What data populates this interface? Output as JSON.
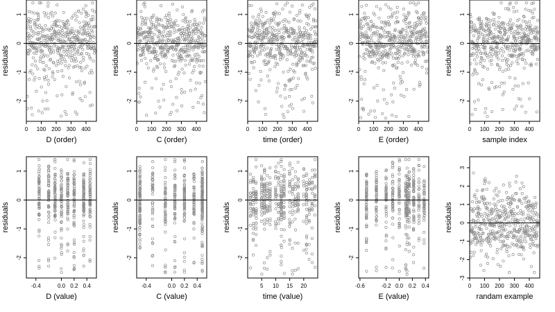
{
  "chart_data": [
    {
      "type": "scatter",
      "xlabel": "D (order)",
      "ylabel": "residuals",
      "xlim": [
        0,
        470
      ],
      "ylim": [
        -2.7,
        1.5
      ],
      "xticks": [
        0,
        100,
        200,
        300,
        400
      ],
      "yticks": [
        -2,
        -1,
        0,
        1
      ],
      "reference_line": 0,
      "n": 470,
      "distribution": "index",
      "seed": 11
    },
    {
      "type": "scatter",
      "xlabel": "C (order)",
      "ylabel": "residuals",
      "xlim": [
        0,
        470
      ],
      "ylim": [
        -2.7,
        1.5
      ],
      "xticks": [
        0,
        100,
        200,
        300,
        400
      ],
      "yticks": [
        -2,
        -1,
        0,
        1
      ],
      "reference_line": 0,
      "n": 470,
      "distribution": "index",
      "seed": 12
    },
    {
      "type": "scatter",
      "xlabel": "time (order)",
      "ylabel": "residuals",
      "xlim": [
        0,
        470
      ],
      "ylim": [
        -2.7,
        1.5
      ],
      "xticks": [
        0,
        100,
        200,
        300,
        400
      ],
      "yticks": [
        -2,
        -1,
        0,
        1
      ],
      "reference_line": 0,
      "n": 470,
      "distribution": "index",
      "seed": 13
    },
    {
      "type": "scatter",
      "xlabel": "E (order)",
      "ylabel": "residuals",
      "xlim": [
        0,
        470
      ],
      "ylim": [
        -2.7,
        1.5
      ],
      "xticks": [
        0,
        100,
        200,
        300,
        400
      ],
      "yticks": [
        -2,
        -1,
        0,
        1
      ],
      "reference_line": 0,
      "n": 470,
      "distribution": "index",
      "seed": 14
    },
    {
      "type": "scatter",
      "xlabel": "sample index",
      "ylabel": "residuals",
      "xlim": [
        0,
        470
      ],
      "ylim": [
        -2.7,
        1.5
      ],
      "xticks": [
        0,
        100,
        200,
        300,
        400
      ],
      "yticks": [
        -2,
        -1,
        0,
        1
      ],
      "reference_line": 0,
      "n": 470,
      "distribution": "index",
      "seed": 15
    },
    {
      "type": "scatter",
      "xlabel": "D (value)",
      "ylabel": "residuals",
      "xlim": [
        -0.55,
        0.55
      ],
      "ylim": [
        -2.7,
        1.5
      ],
      "xticks": [
        -0.4,
        0.0,
        0.2,
        0.4
      ],
      "xtick_labels": [
        "-0.4",
        "0.0",
        "0.2",
        "0.4"
      ],
      "yticks": [
        -2,
        -1,
        0,
        1
      ],
      "reference_line": 0,
      "n": 470,
      "distribution": "levels",
      "levels": [
        -0.35,
        -0.2,
        -0.1,
        0.0,
        0.1,
        0.2,
        0.35,
        0.45
      ],
      "seed": 21
    },
    {
      "type": "scatter",
      "xlabel": "C (value)",
      "ylabel": "residuals",
      "xlim": [
        -0.55,
        0.55
      ],
      "ylim": [
        -2.7,
        1.5
      ],
      "xticks": [
        -0.4,
        0.0,
        0.2,
        0.4
      ],
      "xtick_labels": [
        "-0.4",
        "0.0",
        "0.2",
        "0.4"
      ],
      "yticks": [
        -2,
        -1,
        0,
        1
      ],
      "reference_line": 0,
      "n": 470,
      "distribution": "levels",
      "levels": [
        -0.5,
        -0.5,
        -0.3,
        -0.1,
        0.05,
        0.2,
        0.35,
        0.48,
        0.48,
        0.48
      ],
      "seed": 22
    },
    {
      "type": "scatter",
      "xlabel": "time (value)",
      "ylabel": "residuals",
      "xlim": [
        0,
        25
      ],
      "ylim": [
        -2.7,
        1.5
      ],
      "xticks": [
        5,
        10,
        15,
        20
      ],
      "yticks": [
        -2,
        -1,
        0,
        1
      ],
      "reference_line": 0,
      "n": 470,
      "distribution": "levels",
      "levels": [
        1,
        2,
        3,
        5,
        6,
        7,
        8,
        10,
        11,
        12,
        12,
        13,
        15,
        16,
        17,
        18,
        20,
        21,
        22,
        23,
        24
      ],
      "seed": 23
    },
    {
      "type": "scatter",
      "xlabel": "E (value)",
      "ylabel": "residuals",
      "xlim": [
        -0.62,
        0.45
      ],
      "ylim": [
        -2.7,
        1.5
      ],
      "xticks": [
        -0.6,
        -0.2,
        0.0,
        0.2,
        0.4
      ],
      "xtick_labels": [
        "-0.6",
        "-0.2",
        "0.0",
        "0.2",
        "0.4"
      ],
      "yticks": [
        -2,
        -1,
        0,
        1
      ],
      "reference_line": 0,
      "n": 470,
      "distribution": "levels",
      "levels": [
        -0.5,
        -0.35,
        -0.2,
        -0.1,
        0.0,
        0.1,
        0.12,
        0.15,
        0.22,
        0.3,
        0.38
      ],
      "seed": 24
    },
    {
      "type": "scatter",
      "xlabel": "randam example",
      "ylabel": "residuals",
      "xlim": [
        0,
        470
      ],
      "ylim": [
        -3.0,
        3.6
      ],
      "xticks": [
        0,
        100,
        200,
        300,
        400
      ],
      "yticks": [
        -3,
        -2,
        -1,
        0,
        1,
        2,
        3
      ],
      "reference_line": 0,
      "n": 470,
      "distribution": "normal",
      "seed": 31
    }
  ],
  "colors": {
    "points": "#8c8c8c",
    "axes": "#000000",
    "reference_line": "#000000"
  }
}
